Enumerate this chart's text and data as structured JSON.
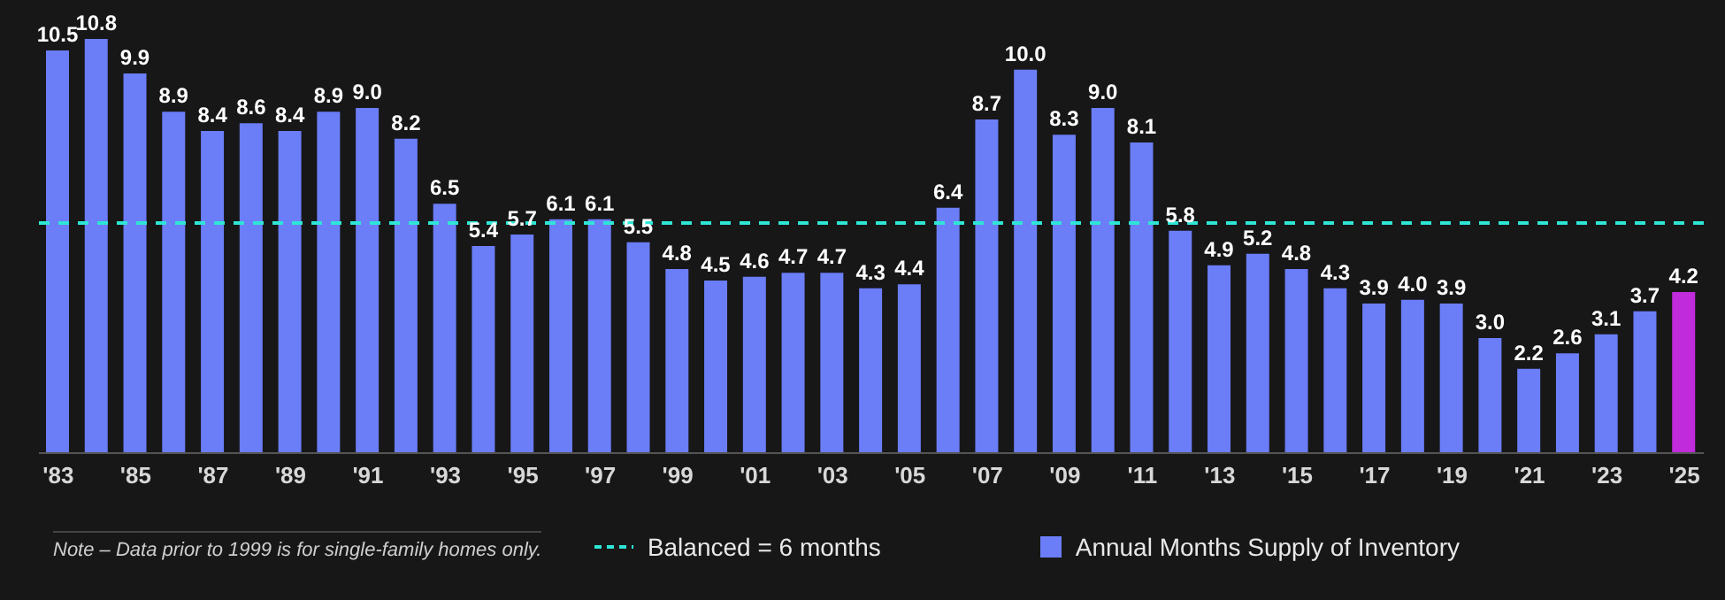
{
  "chart_data": {
    "type": "bar",
    "categories": [
      "'83",
      null,
      "'85",
      null,
      "'87",
      null,
      "'89",
      null,
      "'91",
      null,
      "'93",
      null,
      "'95",
      null,
      "'97",
      null,
      "'99",
      null,
      "'01",
      null,
      "'03",
      null,
      "'05",
      null,
      "'07",
      null,
      "'09",
      null,
      "'11",
      null,
      "'13",
      null,
      "'15",
      null,
      "'17",
      null,
      "'19",
      null,
      "'21",
      null,
      "'23",
      null,
      "'25"
    ],
    "series": [
      {
        "name": "Annual Months Supply of Inventory",
        "color": "#6b7df7",
        "values": [
          10.5,
          10.8,
          9.9,
          8.9,
          8.4,
          8.6,
          8.4,
          8.9,
          9.0,
          8.2,
          6.5,
          5.4,
          5.7,
          6.1,
          6.1,
          5.5,
          4.8,
          4.5,
          4.6,
          4.7,
          4.7,
          4.3,
          4.4,
          6.4,
          8.7,
          10.0,
          8.3,
          9.0,
          8.1,
          5.8,
          4.9,
          5.2,
          4.8,
          4.3,
          3.9,
          4.0,
          3.9,
          3.0,
          2.2,
          2.6,
          3.1,
          3.7,
          4.2
        ],
        "value_labels": [
          "10.5",
          "10.8",
          "9.9",
          "8.9",
          "8.4",
          "8.6",
          "8.4",
          "8.9",
          "9.0",
          "8.2",
          "6.5",
          "5.4",
          "5.7",
          "6.1",
          "6.1",
          "5.5",
          "4.8",
          "4.5",
          "4.6",
          "4.7",
          "4.7",
          "4.3",
          "4.4",
          "6.4",
          "8.7",
          "10.0",
          "8.3",
          "9.0",
          "8.1",
          "5.8",
          "4.9",
          "5.2",
          "4.8",
          "4.3",
          "3.9",
          "4.0",
          "3.9",
          "3.0",
          "2.2",
          "2.6",
          "3.1",
          "3.7",
          "4.2"
        ],
        "colors": [
          "#6b7df7",
          "#6b7df7",
          "#6b7df7",
          "#6b7df7",
          "#6b7df7",
          "#6b7df7",
          "#6b7df7",
          "#6b7df7",
          "#6b7df7",
          "#6b7df7",
          "#6b7df7",
          "#6b7df7",
          "#6b7df7",
          "#6b7df7",
          "#6b7df7",
          "#6b7df7",
          "#6b7df7",
          "#6b7df7",
          "#6b7df7",
          "#6b7df7",
          "#6b7df7",
          "#6b7df7",
          "#6b7df7",
          "#6b7df7",
          "#6b7df7",
          "#6b7df7",
          "#6b7df7",
          "#6b7df7",
          "#6b7df7",
          "#6b7df7",
          "#6b7df7",
          "#6b7df7",
          "#6b7df7",
          "#6b7df7",
          "#6b7df7",
          "#6b7df7",
          "#6b7df7",
          "#6b7df7",
          "#6b7df7",
          "#6b7df7",
          "#6b7df7",
          "#6b7df7",
          "#c02bdc"
        ]
      }
    ],
    "ref_lines": [
      {
        "axis": "y",
        "value": 6,
        "label": "Balanced = 6 months",
        "color": "#2ee6d6",
        "line_style": "dashed"
      }
    ],
    "legend": "bottom",
    "annotations": [
      "Note – Data prior to 1999 is for single-family homes only."
    ]
  }
}
